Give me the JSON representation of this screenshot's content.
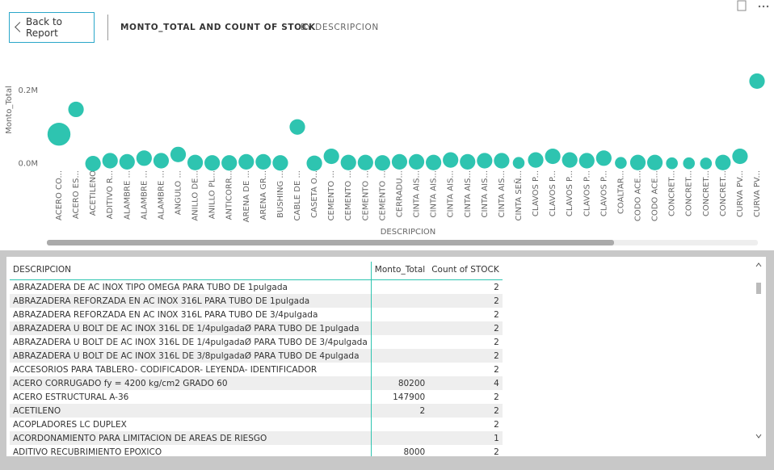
{
  "header": {
    "back_button": "Back to Report",
    "title": "MONTO_TOTAL AND COUNT OF STOCK",
    "subtitle": "BY DESCRIPCION"
  },
  "chart_data": {
    "type": "scatter",
    "x_label": "DESCRIPCION",
    "y_label": "Monto_Total",
    "color": "#2ec4b0",
    "categories": [
      "ACERO CO...",
      "ACERO ES...",
      "ACETILENO",
      "ADITIVO R...",
      "ALAMBRE ...",
      "ALAMBRE ...",
      "ALAMBRE ...",
      "ANGULO ...",
      "ANILLO DE...",
      "ANILLO PL...",
      "ANTICORR...",
      "ARENA DE ...",
      "ARENA GR...",
      "BUSHING ...",
      "CABLE DE ...",
      "CASETA O...",
      "CEMENTO ...",
      "CEMENTO ...",
      "CEMENTO ...",
      "CEMENTO ...",
      "CERRADU...",
      "CINTA AIS...",
      "CINTA AIS...",
      "CINTA AIS...",
      "CINTA AIS...",
      "CINTA AIS...",
      "CINTA AIS...",
      "CINTA SEÑ...",
      "CLAVOS P...",
      "CLAVOS P...",
      "CLAVOS P...",
      "CLAVOS P...",
      "CLAVOS P...",
      "COALTAR...",
      "CODO ACE...",
      "CODO ACE...",
      "CONCRET...",
      "CONCRET...",
      "CONCRET...",
      "CONCRET...",
      "CURVA PV...",
      "CURVA PV..."
    ],
    "values": [
      80200,
      147900,
      2,
      8000,
      5000,
      15000,
      8000,
      25000,
      3000,
      2000,
      2000,
      5000,
      5000,
      2000,
      100000,
      1000,
      20000,
      3000,
      3000,
      2000,
      5000,
      5000,
      3000,
      10000,
      5000,
      8000,
      8000,
      2000,
      10000,
      20000,
      10000,
      8000,
      15000,
      2000,
      3000,
      3000,
      1000,
      1000,
      500,
      3000,
      20000,
      225000
    ],
    "sizes": [
      4,
      2,
      2,
      2,
      2,
      2,
      2,
      2,
      2,
      2,
      2,
      2,
      2,
      2,
      2,
      2,
      2,
      2,
      2,
      2,
      2,
      2,
      2,
      2,
      2,
      2,
      2,
      1,
      2,
      2,
      2,
      2,
      2,
      1,
      2,
      2,
      1,
      1,
      1,
      2,
      2,
      2
    ],
    "ylim": [
      -25000,
      270000
    ],
    "yticks": [
      {
        "value": 0,
        "label": "0.0M"
      },
      {
        "value": 200000,
        "label": "0.2M"
      }
    ]
  },
  "table": {
    "columns": [
      "DESCRIPCION",
      "Monto_Total",
      "Count of STOCK"
    ],
    "rows": [
      [
        "ABRAZADERA DE AC INOX TIPO OMEGA PARA TUBO DE 1pulgada",
        null,
        2
      ],
      [
        "ABRAZADERA REFORZADA EN AC INOX 316L PARA TUBO DE 1pulgada",
        null,
        2
      ],
      [
        "ABRAZADERA REFORZADA EN AC INOX 316L PARA TUBO DE 3/4pulgada",
        null,
        2
      ],
      [
        "ABRAZADERA U BOLT DE AC INOX 316L DE 1/4pulgadaØ PARA TUBO DE 1pulgada",
        null,
        2
      ],
      [
        "ABRAZADERA U BOLT DE AC INOX 316L DE 1/4pulgadaØ PARA TUBO DE 3/4pulgada",
        null,
        2
      ],
      [
        "ABRAZADERA U BOLT DE AC INOX 316L DE 3/8pulgadaØ PARA TUBO DE 4pulgada",
        null,
        2
      ],
      [
        "ACCESORIOS PARA TABLERO- CODIFICADOR- LEYENDA- IDENTIFICADOR",
        null,
        2
      ],
      [
        "ACERO CORRUGADO fy = 4200 kg/cm2 GRADO 60",
        80200,
        4
      ],
      [
        "ACERO ESTRUCTURAL A-36",
        147900,
        2
      ],
      [
        "ACETILENO",
        2,
        2
      ],
      [
        "ACOPLADORES LC DUPLEX",
        null,
        2
      ],
      [
        "ACORDONAMIENTO PARA LIMITACION DE AREAS DE RIESGO",
        null,
        1
      ],
      [
        "ADITIVO RECUBRIMIENTO EPOXICO",
        8000,
        2
      ]
    ]
  }
}
